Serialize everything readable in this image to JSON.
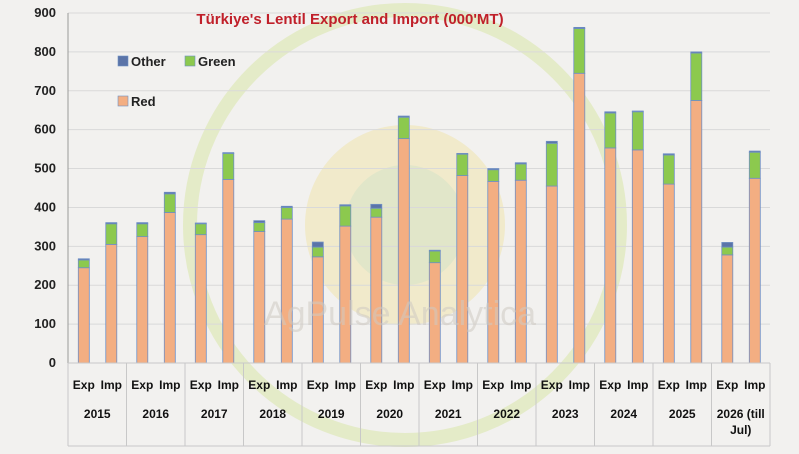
{
  "chart_data": {
    "type": "bar",
    "stacked": true,
    "title": "Türkiye's Lentil Export and Import (000'MT)",
    "title_color": "#c0202a",
    "watermark": "AgPulse Analytica",
    "ylim": [
      0,
      900
    ],
    "yticks": [
      0,
      100,
      200,
      300,
      400,
      500,
      600,
      700,
      800,
      900
    ],
    "grid": true,
    "legend": {
      "placement": "top-left",
      "entries": [
        {
          "name": "Other",
          "color": "#5b74a8"
        },
        {
          "name": "Green",
          "color": "#8cc94e"
        },
        {
          "name": "Red",
          "color": "#f3ae82"
        }
      ]
    },
    "colors": {
      "Red": "#f3ae82",
      "Green": "#8cc94e",
      "Other": "#5b74a8",
      "bar_outline": "#6f8fc4",
      "grid": "#d9d9d9",
      "table_border": "#c8c8c8"
    },
    "groups": [
      {
        "year": "2015",
        "year_lines": [
          "2015"
        ],
        "bars": [
          {
            "label": "Exp",
            "Red": 245,
            "Green": 20,
            "Other": 3
          },
          {
            "label": "Imp",
            "Red": 305,
            "Green": 53,
            "Other": 3
          }
        ]
      },
      {
        "year": "2016",
        "year_lines": [
          "2016"
        ],
        "bars": [
          {
            "label": "Exp",
            "Red": 325,
            "Green": 33,
            "Other": 3
          },
          {
            "label": "Imp",
            "Red": 387,
            "Green": 48,
            "Other": 4
          }
        ]
      },
      {
        "year": "2017",
        "year_lines": [
          "2017"
        ],
        "bars": [
          {
            "label": "Exp",
            "Red": 330,
            "Green": 28,
            "Other": 2
          },
          {
            "label": "Imp",
            "Red": 472,
            "Green": 67,
            "Other": 2
          }
        ]
      },
      {
        "year": "2018",
        "year_lines": [
          "2018"
        ],
        "bars": [
          {
            "label": "Exp",
            "Red": 338,
            "Green": 23,
            "Other": 5
          },
          {
            "label": "Imp",
            "Red": 370,
            "Green": 30,
            "Other": 3
          }
        ]
      },
      {
        "year": "2019",
        "year_lines": [
          "2019"
        ],
        "bars": [
          {
            "label": "Exp",
            "Red": 273,
            "Green": 25,
            "Other": 13
          },
          {
            "label": "Imp",
            "Red": 352,
            "Green": 52,
            "Other": 3
          }
        ]
      },
      {
        "year": "2020",
        "year_lines": [
          "2020"
        ],
        "bars": [
          {
            "label": "Exp",
            "Red": 375,
            "Green": 23,
            "Other": 10
          },
          {
            "label": "Imp",
            "Red": 577,
            "Green": 55,
            "Other": 3
          }
        ]
      },
      {
        "year": "2021",
        "year_lines": [
          "2021"
        ],
        "bars": [
          {
            "label": "Exp",
            "Red": 258,
            "Green": 30,
            "Other": 2
          },
          {
            "label": "Imp",
            "Red": 482,
            "Green": 55,
            "Other": 2
          }
        ]
      },
      {
        "year": "2022",
        "year_lines": [
          "2022"
        ],
        "bars": [
          {
            "label": "Exp",
            "Red": 467,
            "Green": 30,
            "Other": 3
          },
          {
            "label": "Imp",
            "Red": 470,
            "Green": 42,
            "Other": 3
          }
        ]
      },
      {
        "year": "2023",
        "year_lines": [
          "2023"
        ],
        "bars": [
          {
            "label": "Exp",
            "Red": 455,
            "Green": 110,
            "Other": 5
          },
          {
            "label": "Imp",
            "Red": 745,
            "Green": 115,
            "Other": 3
          }
        ]
      },
      {
        "year": "2024",
        "year_lines": [
          "2024"
        ],
        "bars": [
          {
            "label": "Exp",
            "Red": 553,
            "Green": 90,
            "Other": 3
          },
          {
            "label": "Imp",
            "Red": 548,
            "Green": 98,
            "Other": 2
          }
        ]
      },
      {
        "year": "2025",
        "year_lines": [
          "2025"
        ],
        "bars": [
          {
            "label": "Exp",
            "Red": 460,
            "Green": 75,
            "Other": 3
          },
          {
            "label": "Imp",
            "Red": 675,
            "Green": 122,
            "Other": 3
          }
        ]
      },
      {
        "year": "2026 (till Jul)",
        "year_lines": [
          "2026 (till",
          "Jul)"
        ],
        "bars": [
          {
            "label": "Exp",
            "Red": 278,
            "Green": 20,
            "Other": 12
          },
          {
            "label": "Imp",
            "Red": 475,
            "Green": 67,
            "Other": 3
          }
        ]
      }
    ]
  }
}
